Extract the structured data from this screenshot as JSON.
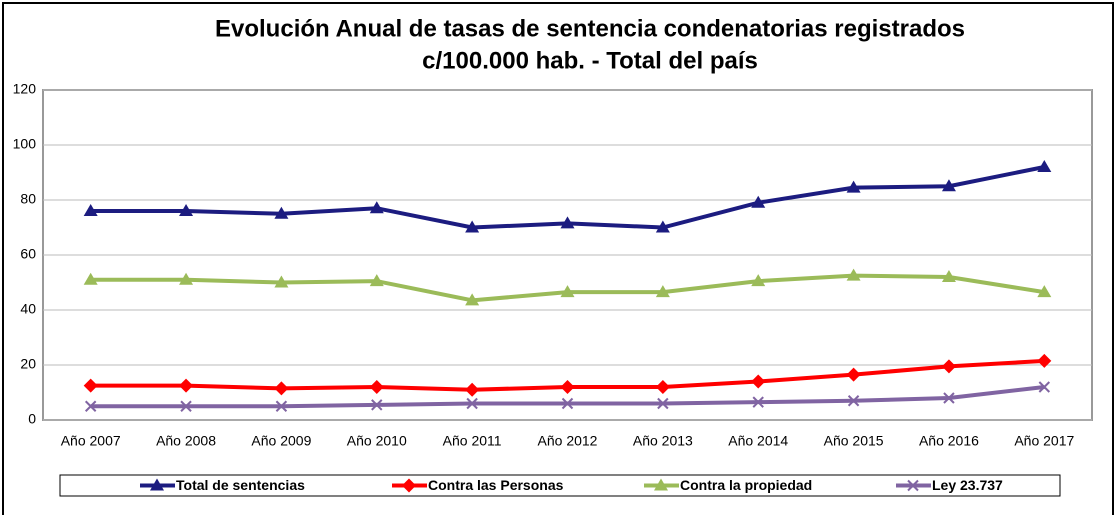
{
  "chart_data": {
    "type": "line",
    "title": "Evolución Anual de tasas de sentencia condenatorias registrados",
    "subtitle": "c/100.000 hab. - Total del país",
    "categories": [
      "Año 2007",
      "Año 2008",
      "Año 2009",
      "Año 2010",
      "Año 2011",
      "Año 2012",
      "Año 2013",
      "Año 2014",
      "Año 2015",
      "Año 2016",
      "Año 2017"
    ],
    "series": [
      {
        "name": "Total de sentencias",
        "color": "#1c1c80",
        "marker": "triangle",
        "values": [
          76,
          76,
          75,
          77,
          70,
          71.5,
          70,
          79,
          84.5,
          85,
          92
        ]
      },
      {
        "name": "Contra las Personas",
        "color": "#ff0000",
        "marker": "diamond",
        "values": [
          12.5,
          12.5,
          11.5,
          12,
          11,
          12,
          12,
          14,
          16.5,
          19.5,
          21.5
        ]
      },
      {
        "name": "Contra la propiedad",
        "color": "#9bbb59",
        "marker": "triangle",
        "values": [
          51,
          51,
          50,
          50.5,
          43.5,
          46.5,
          46.5,
          50.5,
          52.5,
          52,
          46.5
        ]
      },
      {
        "name": "Ley 23.737",
        "color": "#8064a2",
        "marker": "cross",
        "values": [
          5,
          5,
          5,
          5.5,
          6,
          6,
          6,
          6.5,
          7,
          8,
          12
        ]
      }
    ],
    "ylim": [
      0,
      120
    ],
    "yticks": [
      0,
      20,
      40,
      60,
      80,
      100,
      120
    ],
    "grid": true,
    "legend": "bottom"
  }
}
